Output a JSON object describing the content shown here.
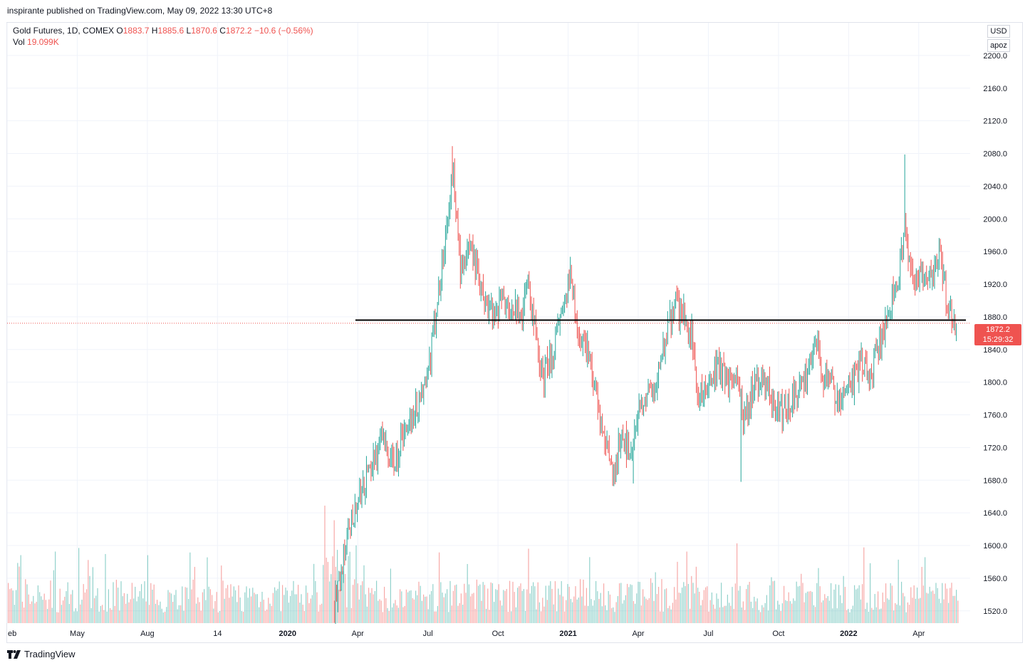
{
  "publisher_line": "inspirante published on TradingView.com, May 09, 2022 13:30 UTC+8",
  "legend": {
    "symbol": "Gold Futures, 1D, COMEX",
    "open_label": "O",
    "open": "1883.7",
    "high_label": "H",
    "high": "1885.6",
    "low_label": "L",
    "low": "1870.6",
    "close_label": "C",
    "close": "1872.2",
    "change": "−10.6 (−0.56%)",
    "vol_label": "Vol",
    "vol": "19.099K"
  },
  "badges": {
    "currency": "USD",
    "scale": "apoz"
  },
  "last_price": {
    "price": "1872.2",
    "countdown": "15:29:32"
  },
  "footer": {
    "brand": "TradingView"
  },
  "colors": {
    "up": "#26a69a",
    "down": "#ef5350",
    "grid": "#f0f3fa",
    "text": "#131722",
    "axis_text": "#131722"
  },
  "chart_data": {
    "type": "candlestick",
    "symbol": "Gold Futures",
    "interval": "1D",
    "exchange": "COMEX",
    "currency": "USD",
    "ylim": [
      1505,
      2240
    ],
    "y_ticks": [
      2200.0,
      2160.0,
      2120.0,
      2080.0,
      2040.0,
      2000.0,
      1960.0,
      1920.0,
      1880.0,
      1840.0,
      1800.0,
      1760.0,
      1720.0,
      1680.0,
      1640.0,
      1600.0,
      1560.0,
      1520.0
    ],
    "x_ticks": [
      "eb",
      "May",
      "Aug",
      "14",
      "2020",
      "Apr",
      "Jul",
      "Oct",
      "2021",
      "Apr",
      "Jul",
      "Oct",
      "2022",
      "Apr"
    ],
    "x_tick_units": [
      0,
      3,
      6,
      9,
      12,
      15,
      18,
      21,
      24,
      27,
      30,
      33,
      36,
      39
    ],
    "price_path": [
      {
        "t": 0,
        "p": null
      },
      {
        "t": 14.0,
        "p": 1525
      },
      {
        "t": 14.8,
        "p": 1640
      },
      {
        "t": 15.5,
        "p": 1690
      },
      {
        "t": 16.0,
        "p": 1730
      },
      {
        "t": 16.5,
        "p": 1700
      },
      {
        "t": 17.0,
        "p": 1740
      },
      {
        "t": 17.5,
        "p": 1770
      },
      {
        "t": 18.0,
        "p": 1810
      },
      {
        "t": 18.4,
        "p": 1900
      },
      {
        "t": 18.8,
        "p": 1980
      },
      {
        "t": 19.05,
        "p": 2060
      },
      {
        "t": 19.4,
        "p": 1940
      },
      {
        "t": 19.9,
        "p": 1960
      },
      {
        "t": 20.3,
        "p": 1910
      },
      {
        "t": 20.8,
        "p": 1885
      },
      {
        "t": 21.2,
        "p": 1905
      },
      {
        "t": 21.6,
        "p": 1900
      },
      {
        "t": 22.0,
        "p": 1880
      },
      {
        "t": 22.3,
        "p": 1920
      },
      {
        "t": 22.6,
        "p": 1860
      },
      {
        "t": 22.9,
        "p": 1800
      },
      {
        "t": 23.3,
        "p": 1835
      },
      {
        "t": 23.7,
        "p": 1870
      },
      {
        "t": 24.1,
        "p": 1930
      },
      {
        "t": 24.4,
        "p": 1860
      },
      {
        "t": 24.8,
        "p": 1840
      },
      {
        "t": 25.2,
        "p": 1790
      },
      {
        "t": 25.6,
        "p": 1720
      },
      {
        "t": 25.9,
        "p": 1690
      },
      {
        "t": 26.3,
        "p": 1730
      },
      {
        "t": 26.7,
        "p": 1720
      },
      {
        "t": 27.0,
        "p": 1760
      },
      {
        "t": 27.4,
        "p": 1780
      },
      {
        "t": 27.8,
        "p": 1800
      },
      {
        "t": 28.2,
        "p": 1860
      },
      {
        "t": 28.6,
        "p": 1895
      },
      {
        "t": 29.0,
        "p": 1880
      },
      {
        "t": 29.3,
        "p": 1860
      },
      {
        "t": 29.6,
        "p": 1780
      },
      {
        "t": 30.0,
        "p": 1800
      },
      {
        "t": 30.4,
        "p": 1820
      },
      {
        "t": 30.8,
        "p": 1800
      },
      {
        "t": 31.2,
        "p": 1810
      },
      {
        "t": 31.5,
        "p": 1750
      },
      {
        "t": 31.9,
        "p": 1790
      },
      {
        "t": 32.3,
        "p": 1810
      },
      {
        "t": 32.7,
        "p": 1780
      },
      {
        "t": 33.0,
        "p": 1760
      },
      {
        "t": 33.4,
        "p": 1770
      },
      {
        "t": 33.8,
        "p": 1790
      },
      {
        "t": 34.2,
        "p": 1800
      },
      {
        "t": 34.6,
        "p": 1860
      },
      {
        "t": 34.9,
        "p": 1810
      },
      {
        "t": 35.3,
        "p": 1790
      },
      {
        "t": 35.7,
        "p": 1780
      },
      {
        "t": 36.1,
        "p": 1800
      },
      {
        "t": 36.5,
        "p": 1820
      },
      {
        "t": 36.8,
        "p": 1810
      },
      {
        "t": 37.2,
        "p": 1830
      },
      {
        "t": 37.6,
        "p": 1870
      },
      {
        "t": 37.9,
        "p": 1910
      },
      {
        "t": 38.2,
        "p": 1940
      },
      {
        "t": 38.4,
        "p": 1990
      },
      {
        "t": 38.7,
        "p": 1930
      },
      {
        "t": 39.0,
        "p": 1920
      },
      {
        "t": 39.3,
        "p": 1940
      },
      {
        "t": 39.6,
        "p": 1930
      },
      {
        "t": 39.9,
        "p": 1960
      },
      {
        "t": 40.2,
        "p": 1900
      },
      {
        "t": 40.5,
        "p": 1870
      },
      {
        "t": 40.65,
        "p": 1872.2
      }
    ],
    "extremes": [
      {
        "t": 19.05,
        "high": 2089
      },
      {
        "t": 38.42,
        "high": 2078.8
      },
      {
        "t": 25.9,
        "low": 1673
      },
      {
        "t": 26.8,
        "low": 1676
      },
      {
        "t": 31.4,
        "low": 1678
      }
    ],
    "horizontal_line": {
      "price": 1876,
      "from_t": 14.9,
      "color": "#000000"
    },
    "last_close": 1872.2,
    "volume_label": "Vol 19.099K"
  }
}
